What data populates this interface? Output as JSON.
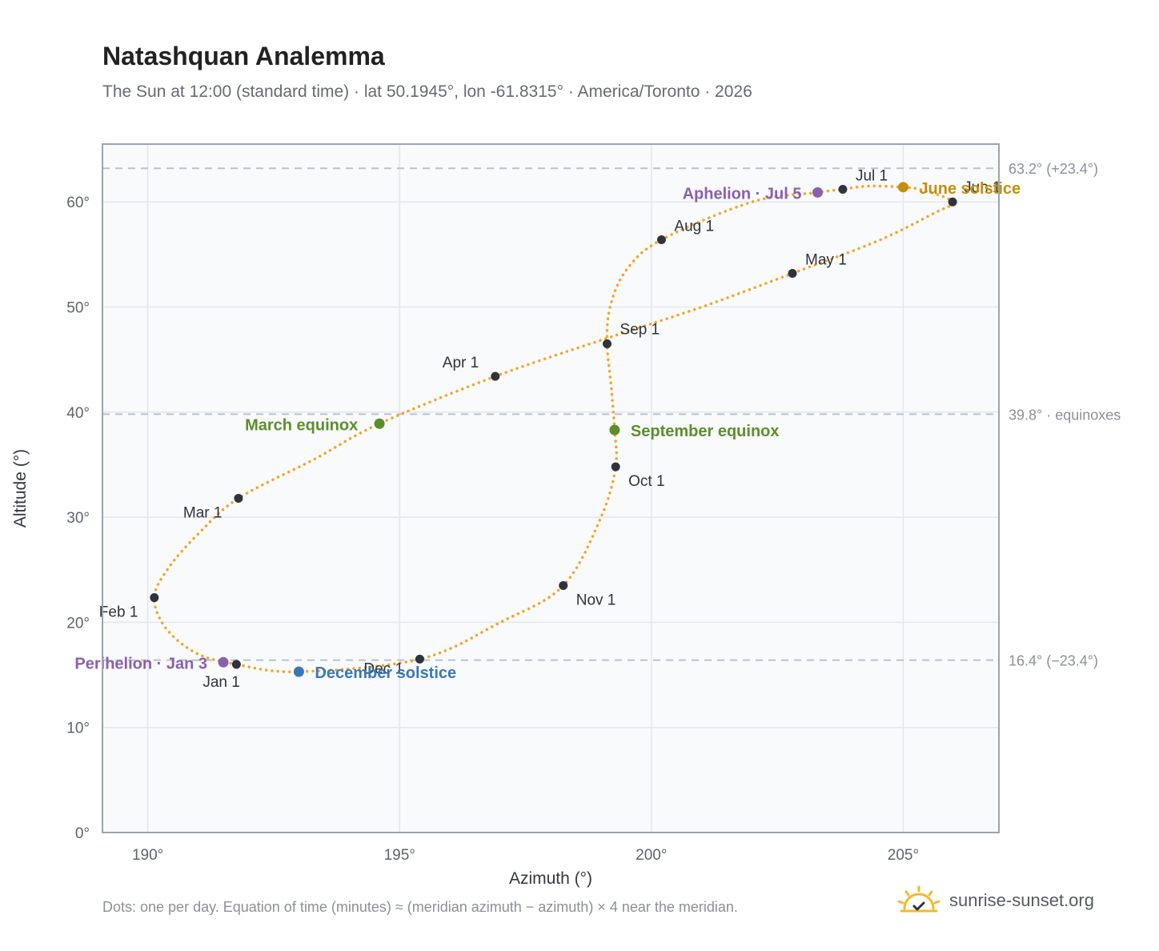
{
  "title": "Natashquan Analemma",
  "subtitle": "The Sun at 12:00 (standard time) · lat 50.1945°, lon -61.8315° · America/Toronto · 2026",
  "footnote": "Dots: one per day. Equation of time (minutes) ≈ (meridian azimuth − azimuth) × 4 near the meridian.",
  "brand": {
    "name": "sunrise-sunset.org",
    "icon": "sun-icon"
  },
  "colors": {
    "curve": "#f2a626",
    "month_marker": "#2f333b",
    "equinox": "#5b8f2a",
    "june_solstice": "#c48f0c",
    "december_solstice": "#3a78b5",
    "aphelion_perihelion": "#8a60ad",
    "reference_line": "#b8c2d0",
    "plot_bg": "#f8fafc"
  },
  "chart_data": {
    "type": "scatter",
    "xlabel": "Azimuth (°)",
    "ylabel": "Altitude (°)",
    "xlim": [
      189.1,
      206.9
    ],
    "ylim": [
      0,
      65.5
    ],
    "xticks": [
      190,
      195,
      200,
      205
    ],
    "xtick_labels": [
      "190°",
      "195°",
      "200°",
      "205°"
    ],
    "yticks": [
      0,
      10,
      20,
      30,
      40,
      50,
      60
    ],
    "ytick_labels": [
      "0°",
      "10°",
      "20°",
      "30°",
      "40°",
      "50°",
      "60°"
    ],
    "grid": true,
    "reference_lines": [
      {
        "y": 63.2,
        "label": "63.2° (+23.4°)"
      },
      {
        "y": 39.8,
        "label": "39.8° · equinoxes"
      },
      {
        "y": 16.4,
        "label": "16.4° (−23.4°)"
      }
    ],
    "series": [
      {
        "name": "",
        "style": "daily-dots",
        "closed": true,
        "points": [
          [
            191.76,
            16.0
          ],
          [
            190.95,
            17.1
          ],
          [
            190.35,
            19.5
          ],
          [
            190.13,
            22.35
          ],
          [
            190.4,
            25.1
          ],
          [
            191.0,
            28.4
          ],
          [
            191.8,
            31.8
          ],
          [
            193.3,
            35.5
          ],
          [
            194.6,
            38.9
          ],
          [
            196.9,
            43.4
          ],
          [
            199.1,
            47.0
          ],
          [
            201.0,
            50.0
          ],
          [
            202.8,
            53.2
          ],
          [
            204.5,
            56.3
          ],
          [
            205.6,
            58.9
          ],
          [
            205.98,
            60.0
          ],
          [
            205.4,
            61.1
          ],
          [
            205.0,
            61.4
          ],
          [
            204.3,
            61.5
          ],
          [
            203.8,
            61.2
          ],
          [
            203.3,
            60.9
          ],
          [
            202.0,
            60.0
          ],
          [
            200.2,
            56.4
          ],
          [
            199.5,
            53.5
          ],
          [
            199.18,
            50.0
          ],
          [
            199.12,
            46.5
          ],
          [
            199.2,
            42.5
          ],
          [
            199.27,
            38.3
          ],
          [
            199.29,
            34.8
          ],
          [
            199.0,
            30.0
          ],
          [
            198.25,
            23.5
          ],
          [
            197.0,
            20.0
          ],
          [
            195.4,
            16.5
          ],
          [
            193.0,
            15.3
          ],
          [
            191.76,
            16.0
          ]
        ]
      }
    ],
    "month_markers": [
      {
        "label": "Jan 1",
        "x": 191.76,
        "y": 16.0
      },
      {
        "label": "Feb 1",
        "x": 190.13,
        "y": 22.35
      },
      {
        "label": "Mar 1",
        "x": 191.8,
        "y": 31.8
      },
      {
        "label": "Apr 1",
        "x": 196.9,
        "y": 43.4
      },
      {
        "label": "May 1",
        "x": 202.8,
        "y": 53.2
      },
      {
        "label": "Jun 1",
        "x": 205.98,
        "y": 60.0
      },
      {
        "label": "Jul 1",
        "x": 203.8,
        "y": 61.2
      },
      {
        "label": "Aug 1",
        "x": 200.2,
        "y": 56.4
      },
      {
        "label": "Sep 1",
        "x": 199.12,
        "y": 46.5
      },
      {
        "label": "Oct 1",
        "x": 199.29,
        "y": 34.8
      },
      {
        "label": "Nov 1",
        "x": 198.25,
        "y": 23.5
      },
      {
        "label": "Dec 1",
        "x": 195.4,
        "y": 16.5
      }
    ],
    "events": [
      {
        "label": "March equinox",
        "kind": "equinox",
        "x": 194.6,
        "y": 38.9
      },
      {
        "label": "September equinox",
        "kind": "equinox",
        "x": 199.27,
        "y": 38.3
      },
      {
        "label": "June solstice",
        "kind": "june_solstice",
        "x": 205.0,
        "y": 61.4
      },
      {
        "label": "December solstice",
        "kind": "december_solstice",
        "x": 193.0,
        "y": 15.3
      },
      {
        "label": "Aphelion · Jul 5",
        "kind": "aphelion_perihelion",
        "x": 203.3,
        "y": 60.9
      },
      {
        "label": "Perihelion · Jan 3",
        "kind": "aphelion_perihelion",
        "x": 191.5,
        "y": 16.2
      }
    ]
  }
}
